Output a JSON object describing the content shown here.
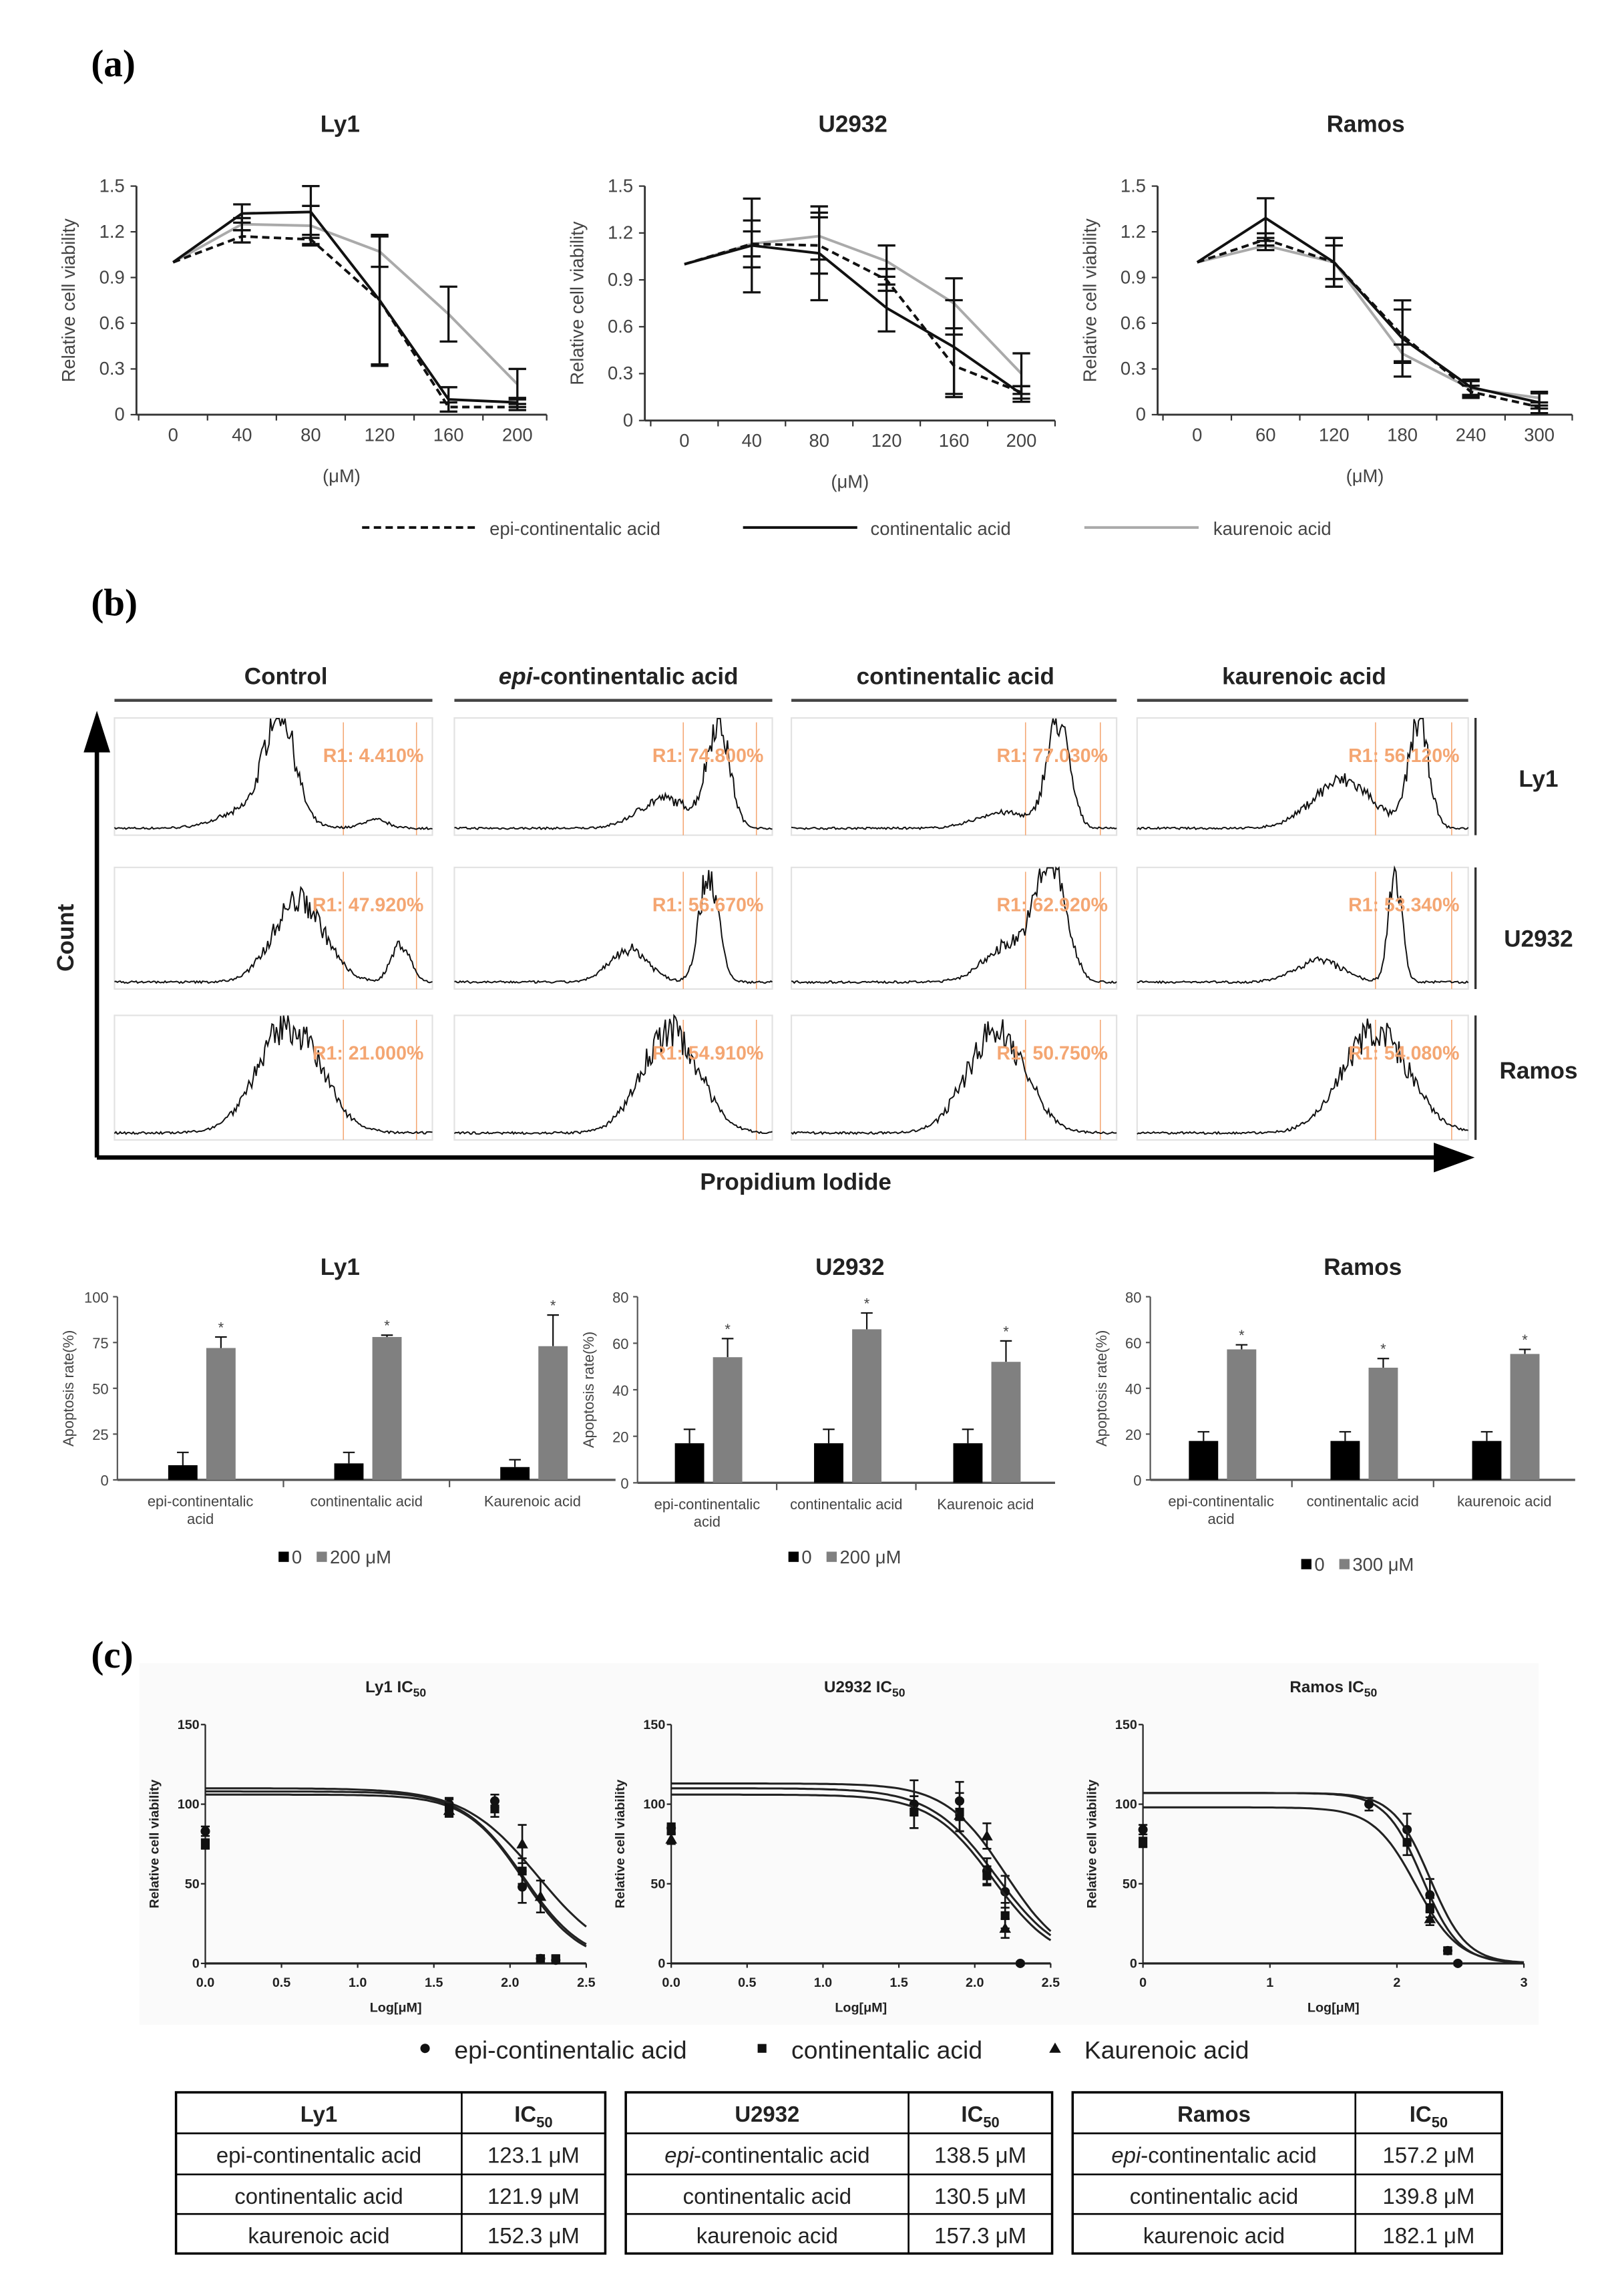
{
  "panels": {
    "a": "(a)",
    "b": "(b)",
    "c": "(c)"
  },
  "legend_a": [
    {
      "name": "epi-continentalic acid",
      "style": "dashed",
      "color": "#111111"
    },
    {
      "name": "continentalic acid",
      "style": "solid",
      "color": "#111111"
    },
    {
      "name": "kaurenoic acid",
      "style": "solid",
      "color": "#aaaaaa"
    }
  ],
  "flow": {
    "columns": [
      {
        "parts": [
          "",
          "Control"
        ]
      },
      {
        "parts": [
          "epi",
          "-continentalic acid"
        ]
      },
      {
        "parts": [
          "",
          "continentalic acid"
        ]
      },
      {
        "parts": [
          "",
          "kaurenoic acid"
        ]
      }
    ],
    "rows": [
      "Ly1",
      "U2932",
      "Ramos"
    ],
    "ylabel": "Count",
    "xlabel": "Propidium Iodide",
    "r1": [
      [
        "R1: 4.410%",
        "R1: 74.800%",
        "R1: 77.030%",
        "R1: 56.120%"
      ],
      [
        "R1: 47.920%",
        "R1: 56.670%",
        "R1: 62.920%",
        "R1: 53.340%"
      ],
      [
        "R1: 21.000%",
        "R1: 54.910%",
        "R1: 50.750%",
        "R1: 54.080%"
      ]
    ],
    "gate_color": "#f4a672"
  },
  "legend_c": [
    {
      "name": "epi-continentalic acid",
      "marker": "circle"
    },
    {
      "name": "continentalic acid",
      "marker": "square"
    },
    {
      "name": "Kaurenoic acid",
      "marker": "triangle"
    }
  ],
  "chart_data": [
    {
      "type": "line",
      "title": "Ly1",
      "x": [
        0,
        40,
        80,
        120,
        160,
        200
      ],
      "xticks": [
        "0",
        "40",
        "80",
        "120",
        "160",
        "200"
      ],
      "xlabel": "(μM)",
      "ylabel": "Relative cell viability",
      "ylim": [
        0,
        1.5
      ],
      "yticks": [
        "0",
        "0.3",
        "0.6",
        "0.9",
        "1.2",
        "1.5"
      ],
      "series": [
        {
          "name": "epi-continentalic acid",
          "values": [
            1.0,
            1.17,
            1.15,
            0.75,
            0.05,
            0.05
          ],
          "errors": [
            0,
            0.04,
            0.03,
            0.43,
            0.03,
            0.02
          ]
        },
        {
          "name": "continentalic acid",
          "values": [
            1.0,
            1.32,
            1.33,
            0.75,
            0.1,
            0.08
          ],
          "errors": [
            0,
            0.06,
            0.17,
            0.42,
            0.08,
            0.03
          ]
        },
        {
          "name": "kaurenoic acid",
          "values": [
            1.0,
            1.25,
            1.24,
            1.07,
            0.66,
            0.2
          ],
          "errors": [
            0,
            0.04,
            0.13,
            0.1,
            0.18,
            0.1
          ]
        }
      ]
    },
    {
      "type": "line",
      "title": "U2932",
      "x": [
        0,
        40,
        80,
        120,
        160,
        200
      ],
      "xticks": [
        "0",
        "40",
        "80",
        "120",
        "160",
        "200"
      ],
      "xlabel": "(μM)",
      "ylabel": "Relative cell viability",
      "ylim": [
        0,
        1.5
      ],
      "yticks": [
        "0",
        "0.3",
        "0.6",
        "0.9",
        "1.2",
        "1.5"
      ],
      "series": [
        {
          "name": "epi-continentalic acid",
          "values": [
            1.0,
            1.13,
            1.12,
            0.9,
            0.35,
            0.18
          ],
          "errors": [
            0,
            0.15,
            0.18,
            0.07,
            0.2,
            0.04
          ]
        },
        {
          "name": "continentalic acid",
          "values": [
            1.0,
            1.12,
            1.07,
            0.72,
            0.47,
            0.17
          ],
          "errors": [
            0,
            0.3,
            0.3,
            0.15,
            0.3,
            0.05
          ]
        },
        {
          "name": "kaurenoic acid",
          "values": [
            1.0,
            1.13,
            1.18,
            1.02,
            0.75,
            0.3
          ],
          "errors": [
            0,
            0.08,
            0.15,
            0.1,
            0.16,
            0.13
          ]
        }
      ]
    },
    {
      "type": "line",
      "title": "Ramos",
      "x": [
        0,
        60,
        120,
        180,
        240,
        300
      ],
      "xticks": [
        "0",
        "60",
        "120",
        "180",
        "240",
        "300"
      ],
      "xlabel": "(μM)",
      "ylabel": "Relative cell viability",
      "ylim": [
        0,
        1.5
      ],
      "yticks": [
        "0",
        "0.3",
        "0.6",
        "0.9",
        "1.2",
        "1.5"
      ],
      "series": [
        {
          "name": "epi-continentalic acid",
          "values": [
            1.0,
            1.15,
            1.0,
            0.52,
            0.15,
            0.05
          ],
          "errors": [
            0,
            0.04,
            0.11,
            0.17,
            0.04,
            0.01
          ]
        },
        {
          "name": "continentalic acid",
          "values": [
            1.0,
            1.29,
            1.0,
            0.5,
            0.18,
            0.08
          ],
          "errors": [
            0,
            0.13,
            0.16,
            0.25,
            0.05,
            0.07
          ]
        },
        {
          "name": "kaurenoic acid",
          "values": [
            1.0,
            1.11,
            1.0,
            0.4,
            0.17,
            0.11
          ],
          "errors": [
            0,
            0.03,
            0.16,
            0.06,
            0.05,
            0.03
          ]
        }
      ]
    },
    {
      "type": "bar",
      "title": "Ly1",
      "ylabel": "Apoptosis rate(%)",
      "ylim": [
        0,
        100
      ],
      "yticks": [
        "0",
        "25",
        "50",
        "75",
        "100"
      ],
      "categories": [
        [
          "epi-continentalic",
          "acid"
        ],
        [
          "continentalic acid"
        ],
        [
          "Kaurenoic acid"
        ]
      ],
      "series": [
        {
          "name": "0",
          "color": "#000000",
          "values": [
            8,
            9,
            7
          ],
          "errors": [
            7,
            6,
            4
          ]
        },
        {
          "name": "200 μM",
          "color": "#808080",
          "values": [
            72,
            78,
            73
          ],
          "errors": [
            6,
            1,
            17
          ]
        }
      ],
      "annotation": "*"
    },
    {
      "type": "bar",
      "title": "U2932",
      "ylabel": "Apoptosis rate(%)",
      "ylim": [
        0,
        80
      ],
      "yticks": [
        "0",
        "20",
        "40",
        "60",
        "80"
      ],
      "categories": [
        [
          "epi-continentalic",
          "acid"
        ],
        [
          "continentalic acid"
        ],
        [
          "Kaurenoic acid"
        ]
      ],
      "series": [
        {
          "name": "0",
          "color": "#000000",
          "values": [
            17,
            17,
            17
          ],
          "errors": [
            6,
            6,
            6
          ]
        },
        {
          "name": "200 μM",
          "color": "#808080",
          "values": [
            54,
            66,
            52
          ],
          "errors": [
            8,
            7,
            9
          ]
        }
      ],
      "annotation": "*"
    },
    {
      "type": "bar",
      "title": "Ramos",
      "ylabel": "Apoptosis rate(%)",
      "ylim": [
        0,
        80
      ],
      "yticks": [
        "0",
        "20",
        "40",
        "60",
        "80"
      ],
      "categories": [
        [
          "epi-continentalic",
          "acid"
        ],
        [
          "continentalic acid"
        ],
        [
          "kaurenoic acid"
        ]
      ],
      "series": [
        {
          "name": "0",
          "color": "#000000",
          "values": [
            17,
            17,
            17
          ],
          "errors": [
            4,
            4,
            4
          ]
        },
        {
          "name": "300 μM",
          "color": "#808080",
          "values": [
            57,
            49,
            55
          ],
          "errors": [
            2,
            4,
            2
          ]
        }
      ],
      "annotation": "*"
    },
    {
      "type": "scatter",
      "title": "Ly1 IC",
      "title_sub": "50",
      "xlabel": "Log[μM]",
      "ylabel": "Relative cell viability",
      "xlim": [
        0,
        2.5
      ],
      "xticks": [
        "0.0",
        "0.5",
        "1.0",
        "1.5",
        "2.0",
        "2.5"
      ],
      "ylim": [
        0,
        150
      ],
      "yticks": [
        "0",
        "50",
        "100",
        "150"
      ],
      "series": [
        {
          "name": "epi-continentalic acid",
          "marker": "circle",
          "points": [
            [
              0,
              83,
              3
            ],
            [
              1.6,
              100,
              4
            ],
            [
              1.9,
              102,
              4
            ],
            [
              2.08,
              48,
              10
            ],
            [
              2.2,
              3,
              2
            ],
            [
              2.3,
              2,
              2
            ]
          ],
          "fit": {
            "top": 108,
            "log_ic50": 2.09,
            "hill": 2.2
          }
        },
        {
          "name": "continentalic acid",
          "marker": "square",
          "points": [
            [
              0,
              75,
              3
            ],
            [
              1.6,
              98,
              5
            ],
            [
              1.9,
              97,
              5
            ],
            [
              2.08,
              58,
              8
            ],
            [
              2.2,
              3,
              2
            ],
            [
              2.3,
              3,
              2
            ]
          ],
          "fit": {
            "top": 106,
            "log_ic50": 2.086,
            "hill": 2.3
          }
        },
        {
          "name": "Kaurenoic acid",
          "marker": "triangle",
          "points": [
            [
              1.6,
              96,
              4
            ],
            [
              2.08,
              75,
              12
            ],
            [
              2.2,
              42,
              10
            ]
          ],
          "fit": {
            "top": 110,
            "log_ic50": 2.18,
            "hill": 1.8
          }
        }
      ]
    },
    {
      "type": "scatter",
      "title": "U2932 IC",
      "title_sub": "50",
      "xlabel": "Log[μM]",
      "ylabel": "Relative cell viability",
      "xlim": [
        0,
        2.5
      ],
      "xticks": [
        "0.0",
        "0.5",
        "1.0",
        "1.5",
        "2.0",
        "2.5"
      ],
      "ylim": [
        0,
        150
      ],
      "yticks": [
        "0",
        "50",
        "100",
        "150"
      ],
      "series": [
        {
          "name": "epi-continentalic acid",
          "marker": "circle",
          "points": [
            [
              0,
              85,
              3
            ],
            [
              1.6,
              100,
              15
            ],
            [
              1.9,
              102,
              12
            ],
            [
              2.08,
              58,
              8
            ],
            [
              2.2,
              45,
              10
            ],
            [
              2.3,
              0,
              1
            ]
          ],
          "fit": {
            "top": 110,
            "log_ic50": 2.14,
            "hill": 2.0
          }
        },
        {
          "name": "continentalic acid",
          "marker": "square",
          "points": [
            [
              0,
              84,
              3
            ],
            [
              1.6,
              95,
              10
            ],
            [
              1.9,
              95,
              12
            ],
            [
              2.08,
              55,
              6
            ],
            [
              2.2,
              30,
              8
            ]
          ],
          "fit": {
            "top": 106,
            "log_ic50": 2.12,
            "hill": 2.1
          }
        },
        {
          "name": "Kaurenoic acid",
          "marker": "triangle",
          "points": [
            [
              0,
              78,
              3
            ],
            [
              1.9,
              93,
              10
            ],
            [
              2.08,
              80,
              8
            ],
            [
              2.2,
              22,
              6
            ]
          ],
          "fit": {
            "top": 113,
            "log_ic50": 2.2,
            "hill": 2.2
          }
        }
      ]
    },
    {
      "type": "scatter",
      "title": "Ramos IC",
      "title_sub": "50",
      "xlabel": "Log[μM]",
      "ylabel": "Relative cell viability",
      "xlim": [
        0,
        3
      ],
      "xticks": [
        "0",
        "1",
        "2",
        "3"
      ],
      "ylim": [
        0,
        150
      ],
      "yticks": [
        "0",
        "50",
        "100",
        "150"
      ],
      "series": [
        {
          "name": "epi-continentalic acid",
          "marker": "circle",
          "points": [
            [
              0,
              84,
              3
            ],
            [
              1.78,
              100,
              4
            ],
            [
              2.08,
              84,
              10
            ],
            [
              2.26,
              43,
              10
            ],
            [
              2.4,
              8,
              2
            ],
            [
              2.48,
              0,
              1
            ]
          ],
          "fit": {
            "top": 107,
            "log_ic50": 2.2,
            "hill": 3.0
          }
        },
        {
          "name": "continentalic acid",
          "marker": "square",
          "points": [
            [
              0,
              76,
              3
            ],
            [
              2.08,
              76,
              8
            ],
            [
              2.26,
              35,
              6
            ],
            [
              2.4,
              8,
              2
            ]
          ],
          "fit": {
            "top": 98,
            "log_ic50": 2.15,
            "hill": 2.6
          }
        },
        {
          "name": "Kaurenoic acid",
          "marker": "triangle",
          "points": [
            [
              2.26,
              28,
              4
            ]
          ],
          "fit": {
            "top": 107,
            "log_ic50": 2.26,
            "hill": 3.0
          }
        }
      ]
    },
    {
      "type": "table",
      "headers": [
        "Ly1",
        "IC",
        "50"
      ],
      "italic_epi": false,
      "rows": [
        {
          "label": [
            "epi",
            "-continentalic acid"
          ],
          "value": "123.1 μM"
        },
        {
          "label": [
            "",
            "continentalic acid"
          ],
          "value": "121.9 μM"
        },
        {
          "label": [
            "",
            "kaurenoic acid"
          ],
          "value": "152.3 μM"
        }
      ]
    },
    {
      "type": "table",
      "headers": [
        "U2932",
        "IC",
        "50"
      ],
      "italic_epi": true,
      "rows": [
        {
          "label": [
            "epi",
            "-continentalic acid"
          ],
          "value": "138.5 μM"
        },
        {
          "label": [
            "",
            "continentalic acid"
          ],
          "value": "130.5 μM"
        },
        {
          "label": [
            "",
            "kaurenoic acid"
          ],
          "value": "157.3 μM"
        }
      ]
    },
    {
      "type": "table",
      "headers": [
        "Ramos",
        "IC",
        "50"
      ],
      "italic_epi": true,
      "rows": [
        {
          "label": [
            "epi",
            "-continentalic acid"
          ],
          "value": "157.2 μM"
        },
        {
          "label": [
            "",
            "continentalic acid"
          ],
          "value": "139.8 μM"
        },
        {
          "label": [
            "",
            "kaurenoic acid"
          ],
          "value": "182.1 μM"
        }
      ]
    }
  ]
}
